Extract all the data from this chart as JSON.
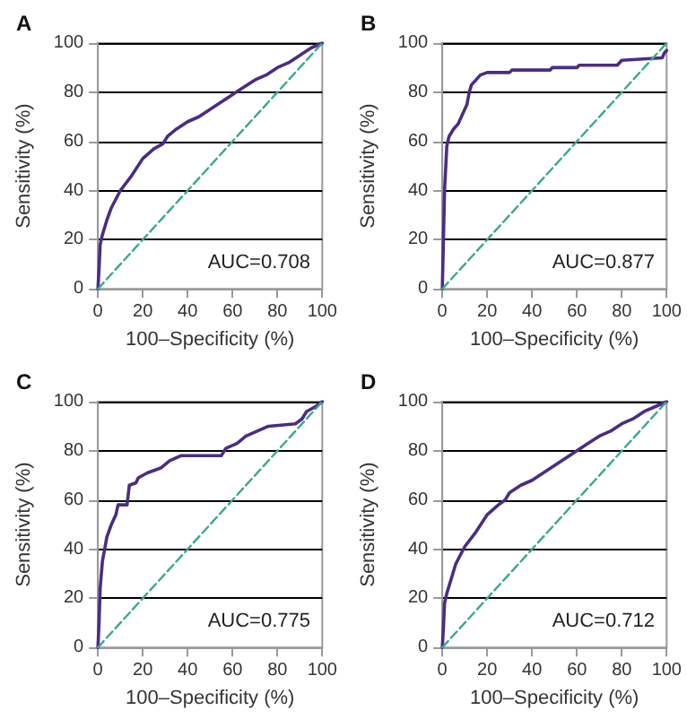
{
  "chart_data": [
    {
      "type": "line",
      "title": "A",
      "xlabel": "100–Specificity (%)",
      "ylabel": "Sensitivity (%)",
      "annotations": [
        "AUC=0.708"
      ],
      "xlim": [
        0,
        100
      ],
      "ylim": [
        0,
        100
      ],
      "xticks": [
        0,
        20,
        40,
        60,
        80,
        100
      ],
      "yticks": [
        0,
        20,
        40,
        60,
        80,
        100
      ],
      "grid": "y",
      "marker": "none",
      "series": [
        {
          "color": "#4b2c83",
          "line_style": "solid",
          "x": [
            0,
            0.5,
            1,
            2,
            4,
            6,
            10,
            15,
            20,
            25,
            29,
            31,
            35,
            40,
            45,
            50,
            55,
            60,
            65,
            70,
            75,
            80,
            85,
            90,
            95,
            100
          ],
          "values": [
            0,
            8,
            18,
            22,
            28,
            33,
            40,
            46,
            53,
            57,
            59,
            62,
            65,
            68,
            70,
            73,
            76,
            79,
            82,
            85,
            87,
            90,
            92,
            95,
            98,
            100
          ]
        },
        {
          "color": "#3aa88e",
          "line_style": "dashed",
          "x": [
            0,
            100
          ],
          "values": [
            0,
            100
          ]
        }
      ]
    },
    {
      "type": "line",
      "title": "B",
      "xlabel": "100–Specificity (%)",
      "ylabel": "Sensitivity (%)",
      "annotations": [
        "AUC=0.877"
      ],
      "xlim": [
        0,
        100
      ],
      "ylim": [
        0,
        100
      ],
      "xticks": [
        0,
        20,
        40,
        60,
        80,
        100
      ],
      "yticks": [
        0,
        20,
        40,
        60,
        80,
        100
      ],
      "grid": "y",
      "marker": "none",
      "series": [
        {
          "color": "#4b2c83",
          "line_style": "solid",
          "x": [
            0,
            0.5,
            1,
            2,
            3,
            5,
            7,
            9,
            11,
            12,
            13,
            15,
            17,
            20,
            30,
            31,
            48,
            49,
            60,
            61,
            78,
            80,
            98,
            99,
            100
          ],
          "values": [
            0,
            20,
            40,
            58,
            62,
            65,
            67,
            71,
            75,
            80,
            83,
            85,
            87,
            88,
            88,
            89,
            89,
            90,
            90,
            91,
            91,
            93,
            94,
            96,
            97
          ]
        },
        {
          "color": "#3aa88e",
          "line_style": "dashed",
          "x": [
            0,
            100
          ],
          "values": [
            0,
            100
          ]
        }
      ]
    },
    {
      "type": "line",
      "title": "C",
      "xlabel": "100–Specificity (%)",
      "ylabel": "Sensitivity (%)",
      "annotations": [
        "AUC=0.775"
      ],
      "xlim": [
        0,
        100
      ],
      "ylim": [
        0,
        100
      ],
      "xticks": [
        0,
        20,
        40,
        60,
        80,
        100
      ],
      "yticks": [
        0,
        20,
        40,
        60,
        80,
        100
      ],
      "grid": "y",
      "marker": "none",
      "series": [
        {
          "color": "#4b2c83",
          "line_style": "solid",
          "x": [
            0,
            0.5,
            1,
            2,
            3,
            4,
            6,
            8,
            9,
            13,
            14,
            17,
            18,
            22,
            28,
            32,
            37,
            55,
            57,
            62,
            66,
            71,
            76,
            88,
            91,
            93,
            97,
            100
          ],
          "values": [
            0,
            10,
            24,
            35,
            40,
            45,
            50,
            54,
            58,
            58,
            66,
            67,
            69,
            71,
            73,
            76,
            78,
            78,
            81,
            83,
            86,
            88,
            90,
            91,
            93,
            96,
            98,
            100
          ]
        },
        {
          "color": "#3aa88e",
          "line_style": "dashed",
          "x": [
            0,
            100
          ],
          "values": [
            0,
            100
          ]
        }
      ]
    },
    {
      "type": "line",
      "title": "D",
      "xlabel": "100–Specificity (%)",
      "ylabel": "Sensitivity (%)",
      "annotations": [
        "AUC=0.712"
      ],
      "xlim": [
        0,
        100
      ],
      "ylim": [
        0,
        100
      ],
      "xticks": [
        0,
        20,
        40,
        60,
        80,
        100
      ],
      "yticks": [
        0,
        20,
        40,
        60,
        80,
        100
      ],
      "grid": "y",
      "marker": "none",
      "series": [
        {
          "color": "#4b2c83",
          "line_style": "solid",
          "x": [
            0,
            0.5,
            1,
            2,
            4,
            6,
            10,
            15,
            20,
            25,
            28,
            30,
            35,
            40,
            45,
            50,
            55,
            60,
            65,
            70,
            75,
            80,
            85,
            90,
            95,
            100
          ],
          "values": [
            0,
            8,
            18,
            22,
            28,
            34,
            41,
            47,
            54,
            58,
            60,
            63,
            66,
            68,
            71,
            74,
            77,
            80,
            83,
            86,
            88,
            91,
            93,
            96,
            98,
            100
          ]
        },
        {
          "color": "#3aa88e",
          "line_style": "dashed",
          "x": [
            0,
            100
          ],
          "values": [
            0,
            100
          ]
        }
      ]
    }
  ]
}
